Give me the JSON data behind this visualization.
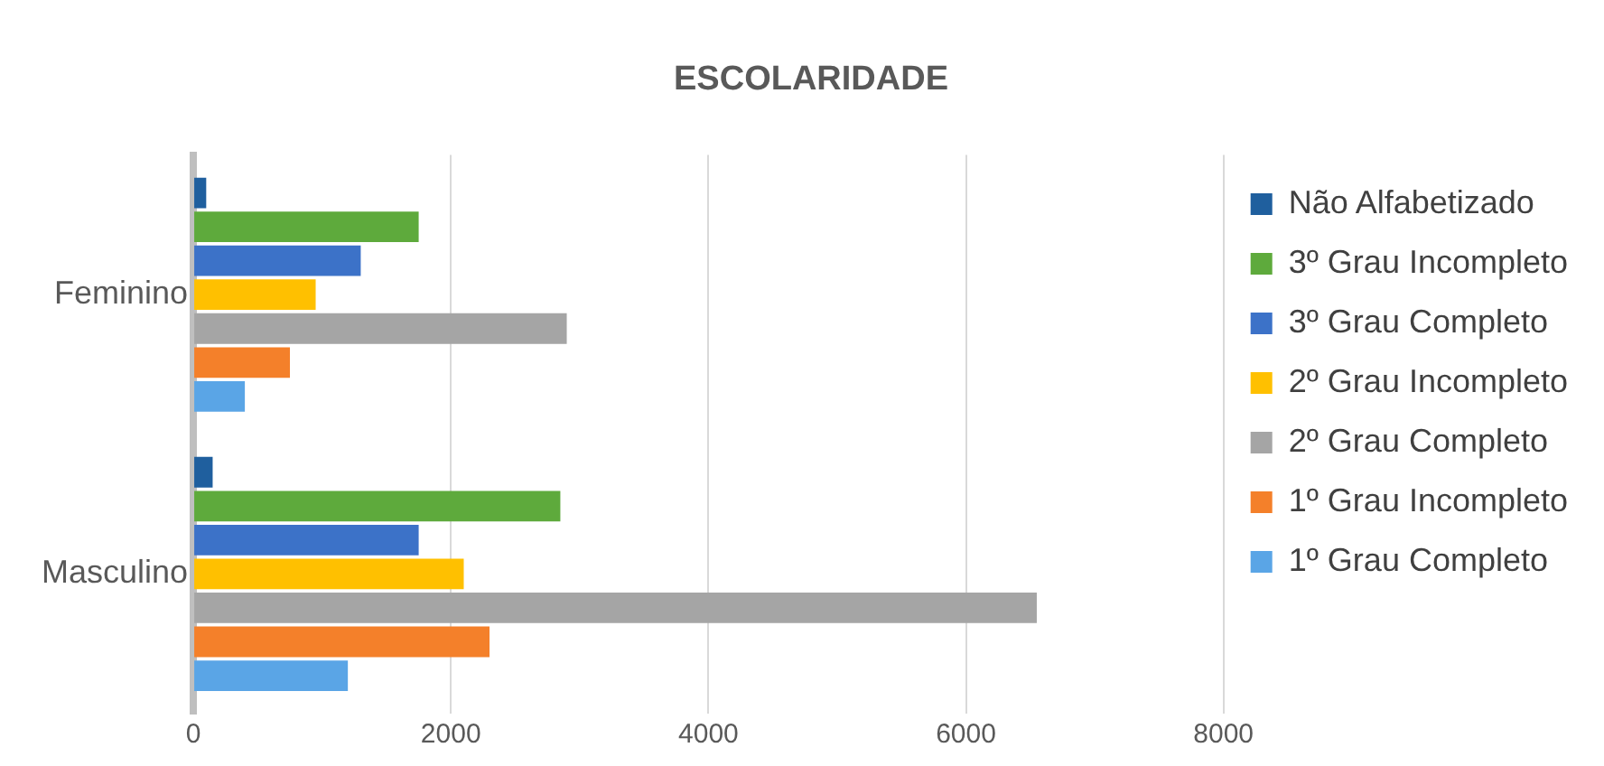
{
  "chart_data": {
    "type": "bar",
    "orientation": "horizontal",
    "title": "ESCOLARIDADE",
    "categories": [
      "Feminino",
      "Masculino"
    ],
    "series": [
      {
        "name": "Não Alfabetizado",
        "color": "#1f5f9e",
        "values": [
          100,
          150
        ]
      },
      {
        "name": "3º Grau Incompleto",
        "color": "#5eaa3c",
        "values": [
          1750,
          2850
        ]
      },
      {
        "name": "3º Grau Completo",
        "color": "#3c72c8",
        "values": [
          1300,
          1750
        ]
      },
      {
        "name": "2º Grau Incompleto",
        "color": "#ffc000",
        "values": [
          950,
          2100
        ]
      },
      {
        "name": "2º Grau Completo",
        "color": "#a5a5a5",
        "values": [
          2900,
          6550
        ]
      },
      {
        "name": "1º Grau Incompleto",
        "color": "#f4802a",
        "values": [
          750,
          2300
        ]
      },
      {
        "name": "1º Grau Completo",
        "color": "#5aa5e6",
        "values": [
          400,
          1200
        ]
      }
    ],
    "xlim": [
      0,
      8000
    ],
    "xticks": [
      0,
      2000,
      4000,
      6000,
      8000
    ],
    "grid": "x",
    "legend": "right"
  }
}
